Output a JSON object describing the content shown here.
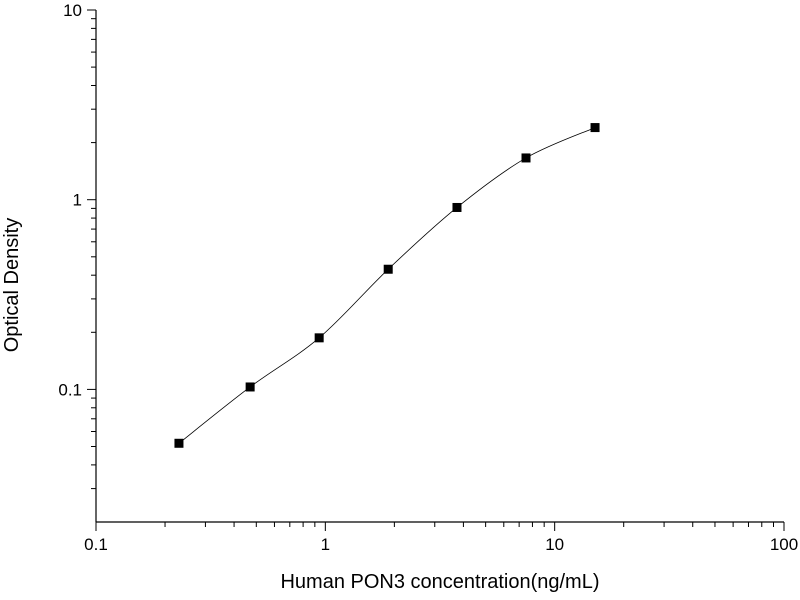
{
  "chart_data": {
    "type": "scatter",
    "title": "",
    "xlabel": "Human PON3 concentration(ng/mL)",
    "ylabel": "Optical Density",
    "xscale": "log",
    "yscale": "log",
    "xlim": [
      0.1,
      100
    ],
    "ylim": [
      0.02,
      10
    ],
    "xticks": [
      {
        "value": 0.1,
        "label": "0.1"
      },
      {
        "value": 1,
        "label": "1"
      },
      {
        "value": 10,
        "label": "10"
      },
      {
        "value": 100,
        "label": "100"
      }
    ],
    "yticks": [
      {
        "value": 0.1,
        "label": "0.1"
      },
      {
        "value": 1,
        "label": "1"
      },
      {
        "value": 10,
        "label": "10"
      }
    ],
    "grid": false,
    "legend": "none",
    "series": [
      {
        "x": [
          0.23,
          0.47,
          0.94,
          1.88,
          3.75,
          7.5,
          15
        ],
        "y": [
          0.052,
          0.103,
          0.187,
          0.43,
          0.91,
          1.66,
          2.4
        ],
        "marker": "square",
        "color": "#000000"
      }
    ],
    "fit_curve": {
      "type": "four-parameter logistic",
      "color": "#000000",
      "x_range": [
        0.23,
        15
      ]
    }
  }
}
